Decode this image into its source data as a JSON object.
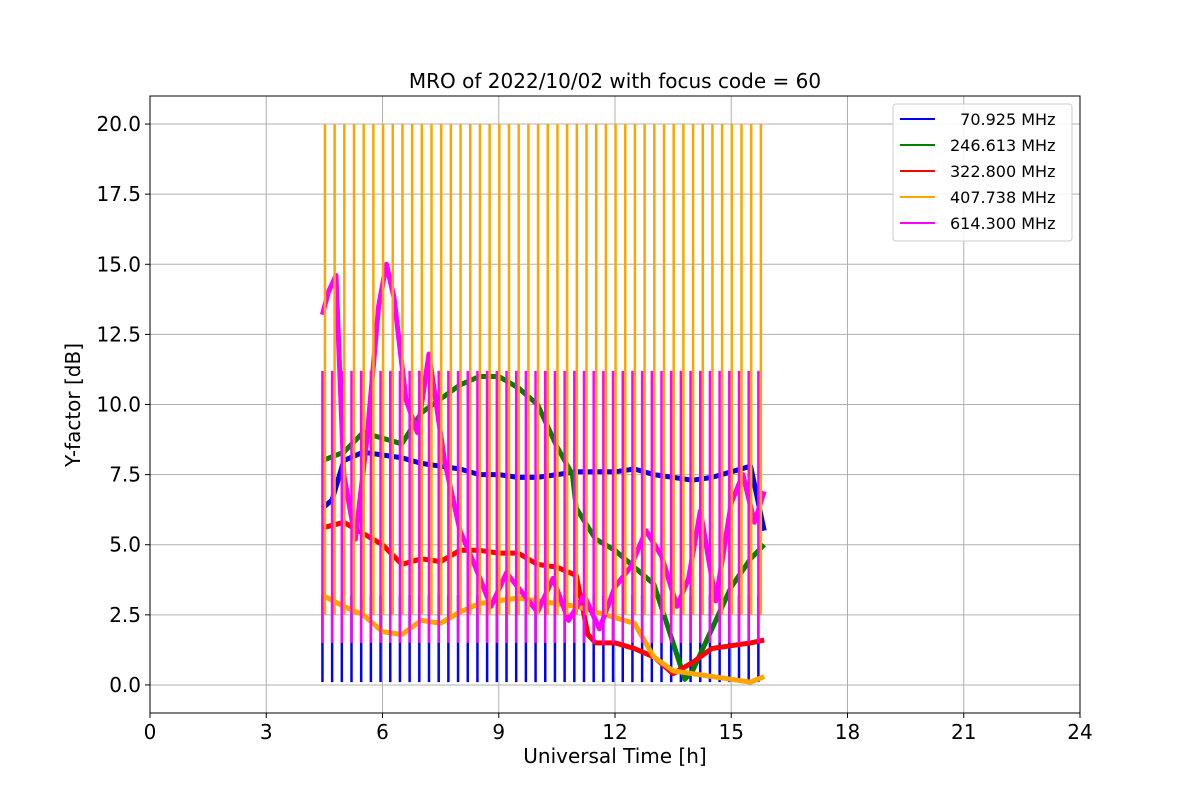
{
  "chart_data": {
    "type": "line",
    "title": "MRO of 2022/10/02 with focus code = 60",
    "xlabel": "Universal Time [h]",
    "ylabel": "Y-factor [dB]",
    "xlim": [
      0,
      24
    ],
    "ylim": [
      -1,
      21
    ],
    "xticks": [
      0,
      3,
      6,
      9,
      12,
      15,
      18,
      21,
      24
    ],
    "yticks": [
      0.0,
      2.5,
      5.0,
      7.5,
      10.0,
      12.5,
      15.0,
      17.5,
      20.0
    ],
    "ytick_labels": [
      "0.0",
      "2.5",
      "5.0",
      "7.5",
      "10.0",
      "12.5",
      "15.0",
      "17.5",
      "20.0"
    ],
    "grid": true,
    "legend_position": "top-right",
    "calibration_spikes": {
      "x": [
        4.45,
        4.7,
        4.95,
        5.2,
        5.45,
        5.7,
        5.95,
        6.2,
        6.45,
        6.7,
        6.95,
        7.2,
        7.45,
        7.7,
        7.95,
        8.2,
        8.45,
        8.7,
        8.95,
        9.2,
        9.45,
        9.7,
        9.95,
        10.2,
        10.45,
        10.7,
        10.95,
        11.2,
        11.45,
        11.7,
        11.95,
        12.2,
        12.45,
        12.7,
        12.95,
        13.2,
        13.45,
        13.7,
        13.95,
        14.2,
        14.45,
        14.7,
        14.95,
        15.2,
        15.45,
        15.7
      ],
      "low_blue": 0.1,
      "high_orange": 20.0,
      "high_magenta": 11.2
    },
    "series": [
      {
        "name": "  70.925 MHz",
        "color": "#0000ff",
        "x": [
          4.45,
          4.7,
          5.0,
          5.5,
          6.0,
          6.5,
          7.0,
          7.5,
          8.0,
          8.5,
          9.0,
          9.5,
          10.0,
          10.5,
          11.0,
          11.5,
          12.0,
          12.5,
          13.0,
          13.5,
          14.0,
          14.5,
          15.0,
          15.5,
          15.85
        ],
        "y": [
          6.3,
          6.6,
          8.0,
          8.3,
          8.2,
          8.1,
          7.9,
          7.8,
          7.7,
          7.5,
          7.5,
          7.4,
          7.4,
          7.5,
          7.6,
          7.6,
          7.6,
          7.7,
          7.5,
          7.4,
          7.3,
          7.4,
          7.6,
          7.8,
          5.5
        ]
      },
      {
        "name": "246.613 MHz",
        "color": "#008000",
        "x": [
          4.45,
          5.0,
          5.5,
          6.0,
          6.5,
          7.0,
          7.5,
          8.0,
          8.5,
          9.0,
          9.5,
          10.0,
          10.5,
          10.9,
          11.0,
          11.5,
          12.0,
          12.5,
          13.0,
          13.5,
          13.8,
          14.0,
          14.5,
          15.0,
          15.5,
          15.85
        ],
        "y": [
          8.0,
          8.3,
          9.0,
          8.8,
          8.6,
          9.7,
          10.2,
          10.7,
          11.0,
          11.0,
          10.6,
          10.0,
          8.5,
          7.5,
          6.3,
          5.2,
          4.8,
          4.2,
          3.6,
          1.5,
          0.2,
          0.5,
          2.0,
          3.5,
          4.5,
          5.0
        ]
      },
      {
        "name": "322.800 MHz",
        "color": "#ff0000",
        "x": [
          4.45,
          5.0,
          5.5,
          6.0,
          6.5,
          7.0,
          7.5,
          8.0,
          8.5,
          9.0,
          9.5,
          10.0,
          10.5,
          11.0,
          11.3,
          11.5,
          12.0,
          12.5,
          13.0,
          13.5,
          14.0,
          14.5,
          15.0,
          15.5,
          15.85
        ],
        "y": [
          5.6,
          5.8,
          5.4,
          5.0,
          4.3,
          4.5,
          4.4,
          4.8,
          4.8,
          4.7,
          4.7,
          4.3,
          4.2,
          3.9,
          1.8,
          1.5,
          1.5,
          1.3,
          1.0,
          0.4,
          0.8,
          1.3,
          1.4,
          1.5,
          1.6
        ]
      },
      {
        "name": "407.738 MHz",
        "color": "#ffa500",
        "x": [
          4.45,
          5.0,
          5.5,
          6.0,
          6.5,
          7.0,
          7.5,
          8.0,
          8.5,
          9.0,
          9.5,
          10.0,
          10.5,
          11.0,
          11.5,
          12.0,
          12.5,
          13.0,
          13.5,
          14.0,
          14.5,
          15.0,
          15.5,
          15.85
        ],
        "y": [
          3.2,
          2.8,
          2.5,
          1.9,
          1.8,
          2.3,
          2.2,
          2.6,
          2.9,
          3.0,
          3.1,
          3.0,
          2.9,
          2.8,
          2.6,
          2.4,
          2.2,
          1.0,
          0.5,
          0.4,
          0.3,
          0.2,
          0.1,
          0.3
        ]
      },
      {
        "name": "614.300 MHz",
        "color": "#ff00ff",
        "x": [
          4.45,
          4.6,
          4.8,
          5.0,
          5.3,
          5.6,
          5.9,
          6.1,
          6.3,
          6.6,
          6.9,
          7.2,
          7.6,
          8.0,
          8.4,
          8.8,
          9.2,
          9.6,
          10.0,
          10.4,
          10.8,
          11.2,
          11.6,
          12.0,
          12.4,
          12.8,
          13.2,
          13.6,
          13.9,
          14.2,
          14.6,
          15.0,
          15.3,
          15.6,
          15.85
        ],
        "y": [
          13.2,
          14.0,
          14.6,
          7.5,
          5.2,
          8.8,
          13.5,
          15.0,
          13.8,
          10.2,
          9.0,
          11.8,
          8.0,
          5.5,
          4.2,
          2.8,
          4.0,
          3.3,
          2.6,
          3.8,
          2.3,
          3.2,
          2.0,
          3.5,
          4.2,
          5.5,
          4.6,
          2.8,
          3.8,
          6.2,
          3.0,
          6.5,
          7.5,
          5.8,
          6.9
        ]
      }
    ]
  }
}
